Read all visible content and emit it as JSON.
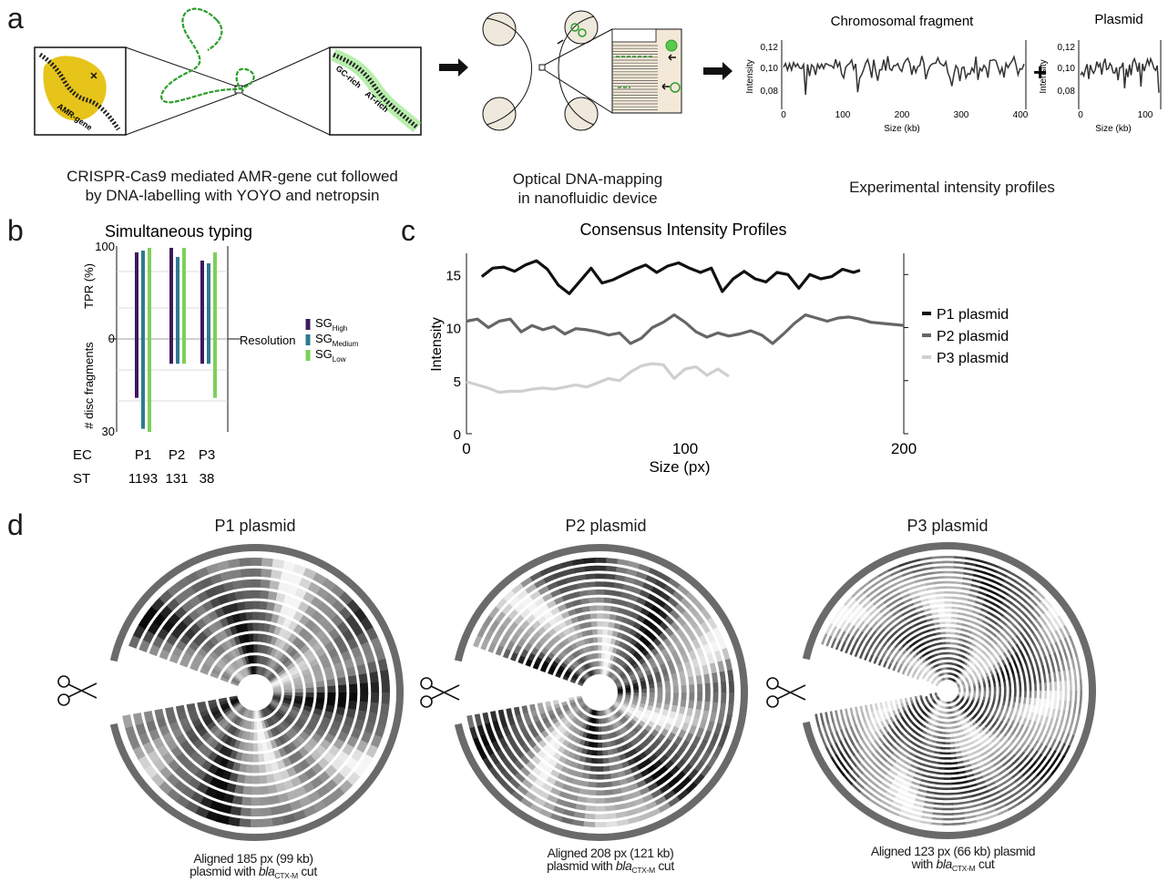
{
  "panels": {
    "a": {
      "letter": "a",
      "caption1_line1": "CRISPR-Cas9 mediated AMR-gene cut followed",
      "caption1_line2": "by DNA-labelling with YOYO and netropsin",
      "amr_label": "AMR-gene",
      "gc_label": "GC-rich",
      "at_label": "AT-rich",
      "caption2_line1": "Optical DNA-mapping",
      "caption2_line2": "in nanofluidic device",
      "caption3": "Experimental intensity profiles",
      "plus": "+",
      "chromosomal": {
        "title": "Chromosomal fragment",
        "ylabel": "Intensity",
        "xlabel": "Size (kb)",
        "yticks": [
          "0,12",
          "0,10",
          "0,08"
        ],
        "xticks": [
          "0",
          "100",
          "200",
          "300",
          "400"
        ]
      },
      "plasmid": {
        "title": "Plasmid",
        "ylabel": "Intensity",
        "xlabel": "Size (kb)",
        "yticks": [
          "0,12",
          "0,10",
          "0,08"
        ],
        "xticks": [
          "0",
          "100"
        ]
      }
    },
    "b": {
      "letter": "b",
      "title": "Simultaneous typing",
      "top_label": "TPR (%)",
      "bottom_label": "# disc fragments",
      "resolution_label": "Resolution",
      "row1_label": "EC",
      "row2_label": "ST",
      "legend": [
        {
          "base": "SG",
          "sub": "High",
          "color": "#3d1a5e"
        },
        {
          "base": "SG",
          "sub": "Medium",
          "color": "#2f7a8f"
        },
        {
          "base": "SG",
          "sub": "Low",
          "color": "#7dd05a"
        }
      ],
      "chart_data": {
        "type": "bar",
        "categories": [
          "P1",
          "P2",
          "P3"
        ],
        "category_sublabels": [
          "1193",
          "131",
          "38"
        ],
        "yticks_top": [
          "100",
          "0"
        ],
        "yticks_bottom": [
          "0",
          "30"
        ],
        "series": [
          {
            "tpr": [
              95,
              100,
              86
            ],
            "disc": [
              19,
              8,
              8
            ]
          },
          {
            "tpr": [
              97,
              90,
              83
            ],
            "disc": [
              29,
              8,
              8
            ]
          },
          {
            "tpr": [
              100,
              100,
              95
            ],
            "disc": [
              30,
              8,
              19
            ]
          }
        ],
        "tpr_range": [
          0,
          100
        ],
        "disc_range": [
          0,
          30
        ]
      }
    },
    "c": {
      "letter": "c",
      "chart_data": {
        "type": "line",
        "title": "Consensus Intensity Profiles",
        "xlabel": "Size (px)",
        "ylabel": "Intensity",
        "xlim": [
          0,
          200
        ],
        "ylim": [
          0,
          17
        ],
        "xticks": [
          "0",
          "100",
          "200"
        ],
        "yticks": [
          "0",
          "5",
          "10",
          "15"
        ],
        "legend_position": "right",
        "series": [
          {
            "name": "P1 plasmid",
            "color": "#111111",
            "x": [
              7,
              12,
              17,
              22,
              27,
              32,
              37,
              42,
              47,
              52,
              57,
              62,
              67,
              72,
              77,
              82,
              87,
              92,
              97,
              102,
              107,
              112,
              117,
              122,
              127,
              132,
              137,
              142,
              147,
              152,
              157,
              162,
              167,
              172,
              177,
              180
            ],
            "y": [
              14.8,
              15.6,
              15.7,
              15.3,
              15.9,
              16.3,
              15.5,
              14.0,
              13.2,
              14.4,
              15.6,
              14.2,
              14.5,
              15.0,
              15.5,
              15.9,
              15.2,
              15.8,
              16.1,
              15.6,
              15.2,
              15.6,
              13.4,
              14.6,
              15.3,
              14.6,
              14.3,
              15.2,
              15.0,
              13.7,
              15.0,
              14.6,
              14.8,
              15.5,
              15.2,
              15.4
            ]
          },
          {
            "name": "P2 plasmid",
            "color": "#666666",
            "x": [
              0,
              5,
              10,
              15,
              20,
              25,
              30,
              35,
              40,
              45,
              50,
              55,
              60,
              65,
              70,
              75,
              80,
              85,
              90,
              95,
              100,
              105,
              110,
              115,
              120,
              125,
              130,
              135,
              140,
              145,
              150,
              155,
              160,
              165,
              170,
              175,
              180,
              185,
              190,
              195,
              200
            ],
            "y": [
              10.6,
              10.8,
              10.0,
              10.6,
              10.8,
              9.6,
              10.2,
              9.8,
              10.1,
              9.4,
              9.9,
              9.8,
              9.6,
              9.3,
              9.5,
              8.5,
              9.0,
              10.0,
              10.5,
              11.2,
              10.5,
              9.6,
              9.1,
              9.5,
              9.2,
              9.4,
              9.7,
              9.3,
              8.5,
              9.4,
              10.4,
              11.2,
              10.9,
              10.6,
              10.9,
              11.0,
              10.8,
              10.5,
              10.4,
              10.3,
              10.2
            ]
          },
          {
            "name": "P3 plasmid",
            "color": "#cfcfcf",
            "x": [
              0,
              5,
              10,
              15,
              20,
              25,
              30,
              35,
              40,
              45,
              50,
              55,
              60,
              65,
              70,
              75,
              80,
              85,
              90,
              95,
              100,
              105,
              110,
              115,
              120
            ],
            "y": [
              4.9,
              4.6,
              4.3,
              3.9,
              4.0,
              4.0,
              4.2,
              4.3,
              4.2,
              4.4,
              4.6,
              4.4,
              4.8,
              5.2,
              5.0,
              5.8,
              6.4,
              6.6,
              6.5,
              5.2,
              6.1,
              6.3,
              5.5,
              6.1,
              5.4
            ]
          }
        ]
      }
    },
    "d": {
      "letter": "d",
      "discs": [
        {
          "title": "P1 plasmid",
          "cap1": "Aligned 185 px (99 kb)",
          "cap2_pre": "plasmid with ",
          "cap2_gene": "bla",
          "cap2_sub": "CTX-M",
          "cap2_post": " cut",
          "rings": 11
        },
        {
          "title": "P2 plasmid",
          "cap1": "Aligned 208 px (121 kb)",
          "cap2_pre": "plasmid with ",
          "cap2_gene": "bla",
          "cap2_sub": "CTX-M",
          "cap2_post": " cut",
          "rings": 15
        },
        {
          "title": "P3 plasmid",
          "cap1": "Aligned 123 px (66 kb) plasmid",
          "cap2_pre": "with ",
          "cap2_gene": "bla",
          "cap2_sub": "CTX-M",
          "cap2_post": " cut",
          "rings": 25
        }
      ],
      "icon": "scissors-icon"
    }
  }
}
